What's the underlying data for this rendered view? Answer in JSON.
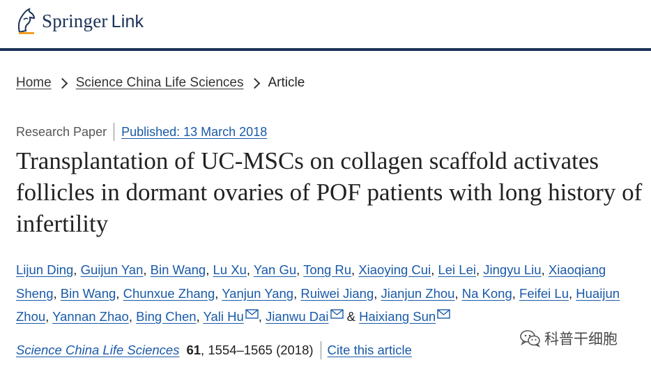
{
  "header": {
    "logo_main": "Springer",
    "logo_sub": "Link",
    "rule_color": "#1a3157"
  },
  "breadcrumb": {
    "items": [
      {
        "label": "Home"
      },
      {
        "label": "Science China Life Sciences"
      }
    ],
    "current": "Article"
  },
  "article": {
    "type": "Research Paper",
    "published": "Published: 13 March 2018",
    "title": "Transplantation of UC-MSCs on collagen scaffold activates follicles in dormant ovaries of POF patients with long history of infertility",
    "authors": [
      {
        "name": "Lijun Ding",
        "email": false
      },
      {
        "name": "Guijun Yan",
        "email": false
      },
      {
        "name": "Bin Wang",
        "email": false
      },
      {
        "name": "Lu Xu",
        "email": false
      },
      {
        "name": "Yan Gu",
        "email": false
      },
      {
        "name": "Tong Ru",
        "email": false
      },
      {
        "name": "Xiaoying Cui",
        "email": false
      },
      {
        "name": "Lei Lei",
        "email": false
      },
      {
        "name": "Jingyu Liu",
        "email": false
      },
      {
        "name": "Xiaoqiang Sheng",
        "email": false
      },
      {
        "name": "Bin Wang",
        "email": false
      },
      {
        "name": "Chunxue Zhang",
        "email": false
      },
      {
        "name": "Yanjun Yang",
        "email": false
      },
      {
        "name": "Ruiwei Jiang",
        "email": false
      },
      {
        "name": "Jianjun Zhou",
        "email": false
      },
      {
        "name": "Na Kong",
        "email": false
      },
      {
        "name": "Feifei Lu",
        "email": false
      },
      {
        "name": "Huaijun Zhou",
        "email": false
      },
      {
        "name": "Yannan Zhao",
        "email": false
      },
      {
        "name": "Bing Chen",
        "email": false
      },
      {
        "name": "Yali Hu",
        "email": true
      },
      {
        "name": "Jianwu Dai",
        "email": true
      },
      {
        "name": "Haixiang Sun",
        "email": true
      }
    ],
    "journal": "Science China Life Sciences",
    "volume": "61",
    "pages": ", 1554–1565 (2018)",
    "cite_label": "Cite this article"
  },
  "watermark": {
    "text": "科普干细胞",
    "icon": "wechat-icon"
  },
  "colors": {
    "link": "#1a5aa8",
    "brand": "#1a3157",
    "text": "#222222"
  }
}
